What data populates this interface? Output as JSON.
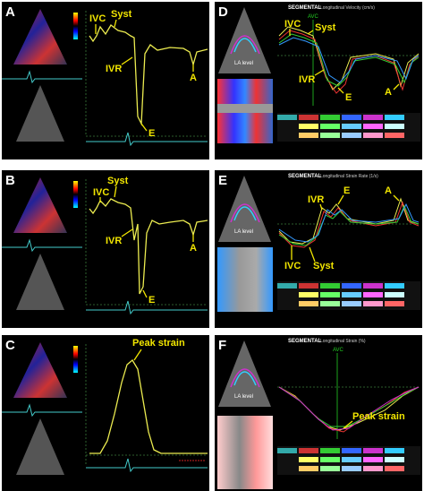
{
  "panels": [
    {
      "label": "A",
      "annotations": [
        "IVC",
        "Syst",
        "IVR",
        "E",
        "A"
      ]
    },
    {
      "label": "B",
      "annotations": [
        "IVC",
        "Syst",
        "IVR",
        "E",
        "A"
      ]
    },
    {
      "label": "C",
      "annotations": [
        "Peak strain"
      ]
    },
    {
      "label": "D",
      "title": "SEGMENTAL",
      "subtitle": "Longitudinal Velocity (cm/s)",
      "image_label": "LA level",
      "marker": "AVC",
      "annotations": [
        "IVC",
        "Syst",
        "IVR",
        "E",
        "A"
      ]
    },
    {
      "label": "E",
      "title": "SEGMENTAL",
      "subtitle": "Longitudinal Strain Rate (1/s)",
      "image_label": "LA level",
      "annotations": [
        "IVR",
        "E",
        "A",
        "IVC",
        "Syst"
      ]
    },
    {
      "label": "F",
      "title": "SEGMENTAL",
      "subtitle": "Longitudinal Strain (%)",
      "image_label": "LA level",
      "marker": "AVC",
      "annotations": [
        "Peak strain"
      ]
    }
  ]
}
